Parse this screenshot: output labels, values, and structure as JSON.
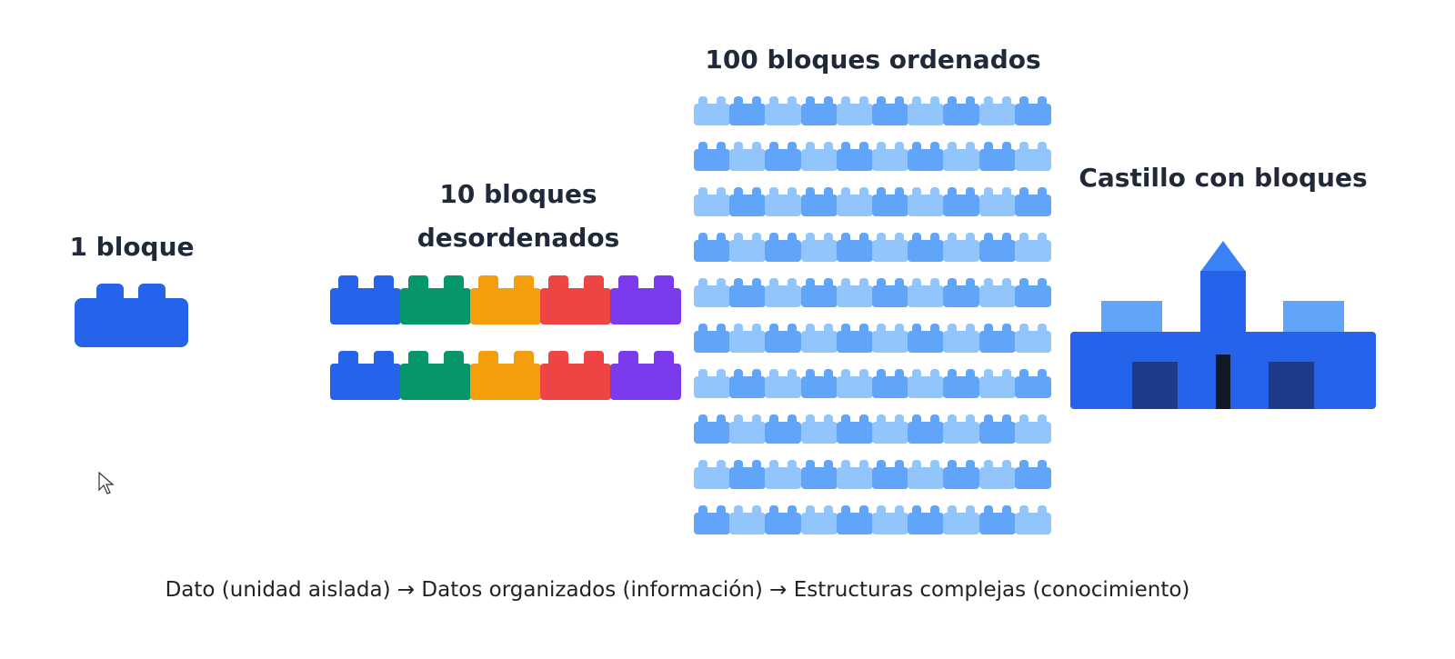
{
  "stages": {
    "one_label": "1 bloque",
    "ten_label_line1": "10 bloques",
    "ten_label_line2": "desordenados",
    "hundred_label": "100 bloques ordenados",
    "castle_label": "Castillo con bloques"
  },
  "caption": "Dato (unidad aislada) → Datos organizados (información) → Estructuras complejas (conocimiento)",
  "colors": {
    "single_block": "#2563eb",
    "ten_blocks": [
      "#2563eb",
      "#059669",
      "#f59e0b",
      "#ef4444",
      "#7c3aed"
    ],
    "hundred_blocks": [
      "#93c5fd",
      "#60a5fa"
    ],
    "castle_main": "#2563eb",
    "castle_light": "#60a5fa",
    "castle_window": "#1e3a8a",
    "castle_door": "#111827"
  },
  "icons": {
    "cursor": "mouse-pointer-icon"
  }
}
